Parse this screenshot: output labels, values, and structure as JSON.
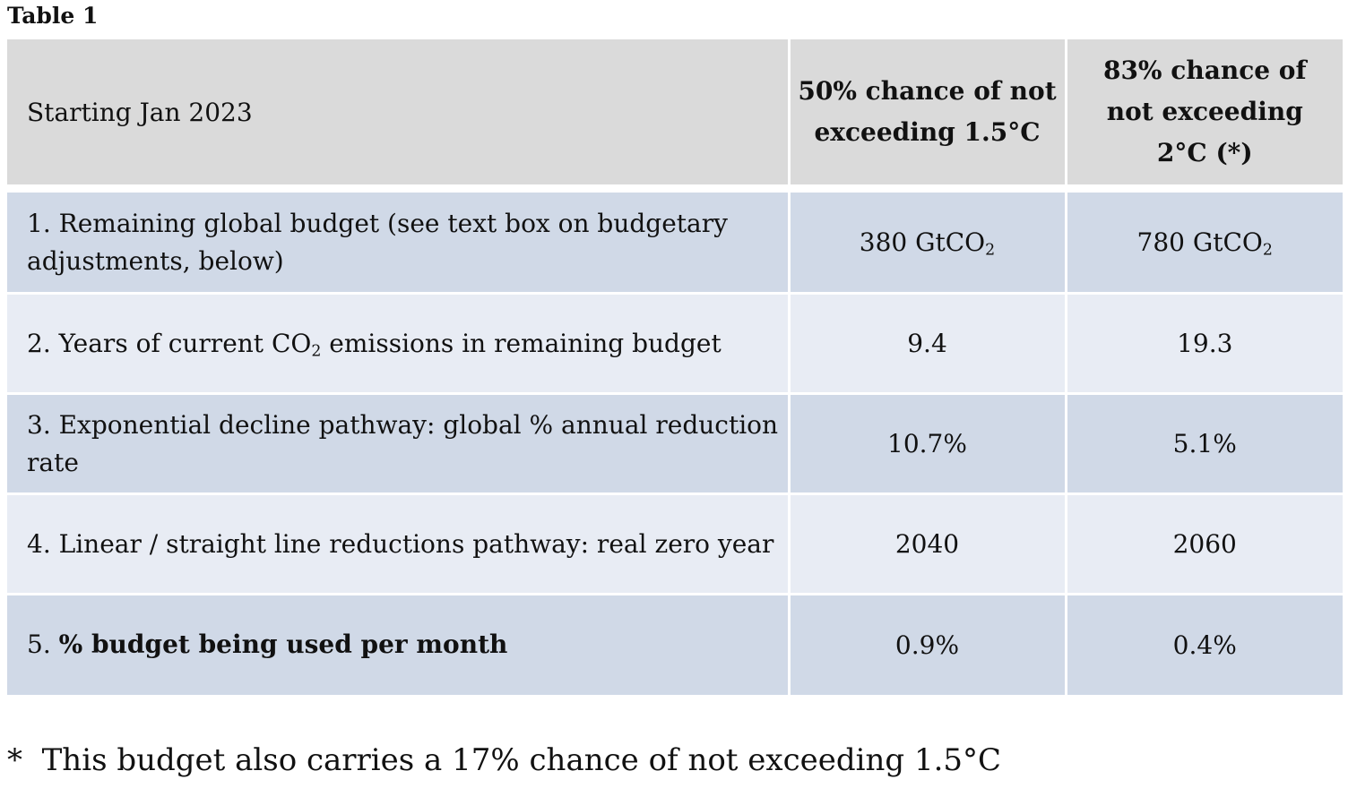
{
  "caption": "Table 1",
  "table": {
    "header": {
      "label": "Starting Jan 2023",
      "col1_line1": "50% chance of not",
      "col1_line2": "exceeding 1.5°C",
      "col2_line1": "83% chance of",
      "col2_line2": "not exceeding",
      "col2_line3": "2°C (*)"
    },
    "rows": [
      {
        "label": "1.  Remaining global budget (see text box on budgetary adjustments, below)",
        "v1_num": "380 GtCO",
        "v1_sub": "2",
        "v2_num": "780 GtCO",
        "v2_sub": "2"
      },
      {
        "label_pre": "2. Years of current CO",
        "label_sub": "2",
        "label_post": " emissions in remaining budget",
        "v1": "9.4",
        "v2": "19.3"
      },
      {
        "label": "3. Exponential decline pathway: global % annual reduction rate",
        "v1": "10.7%",
        "v2": "5.1%"
      },
      {
        "label": "4. Linear / straight line reductions pathway: real zero year",
        "v1": "2040",
        "v2": "2060"
      },
      {
        "label_num": "5. ",
        "label_bold": "% budget being used per month",
        "v1": "0.9%",
        "v2": "0.4%"
      }
    ]
  },
  "footnote": "*  This budget also carries a 17% chance of not exceeding 1.5°C"
}
